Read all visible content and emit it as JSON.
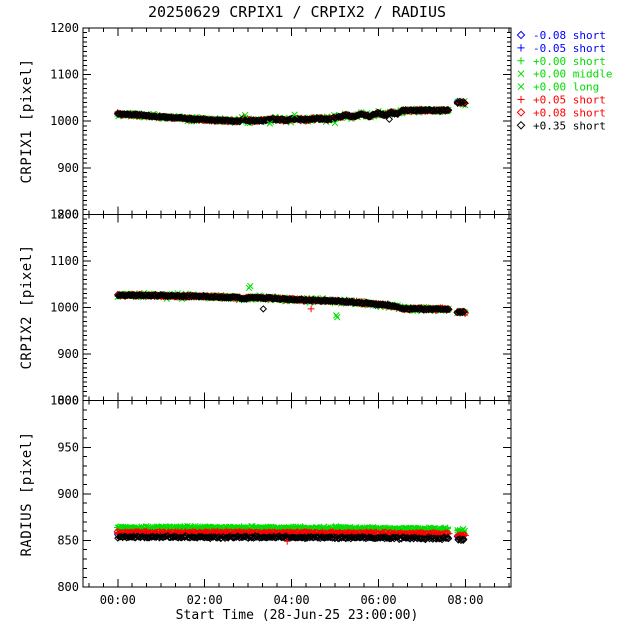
{
  "title": "20250629 CRPIX1 / CRPIX2 / RADIUS",
  "xaxis": {
    "label": "Start Time (28-Jun-25 23:00:00)",
    "tick_labels": [
      "00:00",
      "02:00",
      "04:00",
      "06:00",
      "08:00"
    ],
    "tick_hours": [
      1,
      3,
      5,
      7,
      9
    ],
    "range_hours": [
      0.2,
      10.05
    ],
    "minor_step_hours": 0.3333333
  },
  "colors": {
    "blue": "#0000ff",
    "green": "#00dd00",
    "red": "#ff0000",
    "black": "#000000",
    "background": "#ffffff"
  },
  "legend": {
    "entries": [
      {
        "symbol": "diamond",
        "color": "#0000ff",
        "label": "-0.08 short"
      },
      {
        "symbol": "plus",
        "color": "#0000ff",
        "label": "-0.05 short"
      },
      {
        "symbol": "plus",
        "color": "#00dd00",
        "label": "+0.00 short"
      },
      {
        "symbol": "x",
        "color": "#00dd00",
        "label": "+0.00 middle"
      },
      {
        "symbol": "x",
        "color": "#00dd00",
        "label": "+0.00 long"
      },
      {
        "symbol": "plus",
        "color": "#ff0000",
        "label": "+0.05 short"
      },
      {
        "symbol": "diamond",
        "color": "#ff0000",
        "label": "+0.08 short"
      },
      {
        "symbol": "diamond",
        "color": "#000000",
        "label": "+0.35 short"
      }
    ]
  },
  "chart_data": [
    {
      "type": "scatter",
      "name": "CRPIX1",
      "ylabel": "CRPIX1 [pixel]",
      "ylim": [
        800,
        1200
      ],
      "yticks": [
        800,
        900,
        1000,
        1100,
        1200
      ],
      "y_minor_step": 10,
      "x_hours_since": "28-Jun-25 23:00:00",
      "segments_hours": [
        [
          1.0,
          8.63
        ],
        [
          8.82,
          9.0
        ]
      ],
      "trend": [
        [
          1.0,
          1016
        ],
        [
          1.35,
          1014
        ],
        [
          1.7,
          1011.5
        ],
        [
          2.05,
          1009
        ],
        [
          2.4,
          1006.5
        ],
        [
          2.75,
          1004.5
        ],
        [
          3.1,
          1002.5
        ],
        [
          3.5,
          1001
        ],
        [
          3.8,
          1000
        ],
        [
          3.9,
          1006
        ],
        [
          4.0,
          1000.5
        ],
        [
          4.3,
          1002
        ],
        [
          4.6,
          1004
        ],
        [
          4.85,
          1001.5
        ],
        [
          5.1,
          1005
        ],
        [
          5.35,
          1002.5
        ],
        [
          5.6,
          1006
        ],
        [
          5.85,
          1004
        ],
        [
          6.1,
          1009
        ],
        [
          6.25,
          1013.5
        ],
        [
          6.4,
          1009
        ],
        [
          6.6,
          1015
        ],
        [
          6.8,
          1010.5
        ],
        [
          7.0,
          1018
        ],
        [
          7.15,
          1012.5
        ],
        [
          7.3,
          1019
        ],
        [
          7.45,
          1016
        ],
        [
          7.55,
          1023
        ],
        [
          8.63,
          1023.5
        ],
        [
          8.82,
          1040
        ],
        [
          9.0,
          1040
        ]
      ],
      "series": [
        {
          "key": "blue-plus",
          "color": "#0000ff",
          "symbol": "plus",
          "dy": 0,
          "jitter": 4,
          "step": 0.28
        },
        {
          "key": "blue-diamond",
          "color": "#0000ff",
          "symbol": "diamond",
          "dy": 0,
          "jitter": 4,
          "step": 0.33
        },
        {
          "key": "green-x",
          "color": "#00dd00",
          "symbol": "x",
          "dy": 0,
          "jitter": 7,
          "step": 0.022
        },
        {
          "key": "green-plus",
          "color": "#00dd00",
          "symbol": "plus",
          "dy": 0,
          "jitter": 4,
          "step": 0.05
        },
        {
          "key": "red-plus",
          "color": "#ff0000",
          "symbol": "plus",
          "dy": 0,
          "jitter": 3.5,
          "step": 0.03
        },
        {
          "key": "red-diamond",
          "color": "#ff0000",
          "symbol": "diamond",
          "dy": 0,
          "jitter": 3.5,
          "step": 0.055
        },
        {
          "key": "black-diamond",
          "color": "#000000",
          "symbol": "diamond",
          "dy": 0,
          "jitter": 2.8,
          "step": 0.026
        }
      ],
      "outliers": [
        {
          "color": "#00dd00",
          "symbol": "x",
          "points": [
            [
              3.93,
              1013
            ],
            [
              5.07,
              1014
            ],
            [
              6.0,
              996
            ],
            [
              4.5,
              995
            ]
          ]
        },
        {
          "color": "#000000",
          "symbol": "diamond",
          "points": [
            [
              7.25,
              1004
            ]
          ]
        }
      ]
    },
    {
      "type": "scatter",
      "name": "CRPIX2",
      "ylabel": "CRPIX2 [pixel]",
      "ylim": [
        800,
        1200
      ],
      "yticks": [
        800,
        900,
        1000,
        1100,
        1200
      ],
      "y_minor_step": 10,
      "x_hours_since": "28-Jun-25 23:00:00",
      "segments_hours": [
        [
          1.0,
          8.63
        ],
        [
          8.82,
          9.0
        ]
      ],
      "trend": [
        [
          1.0,
          1026.5
        ],
        [
          1.6,
          1026
        ],
        [
          2.2,
          1025
        ],
        [
          2.8,
          1024
        ],
        [
          3.4,
          1022.5
        ],
        [
          3.8,
          1021.5
        ],
        [
          3.9,
          1018
        ],
        [
          4.0,
          1021.5
        ],
        [
          4.5,
          1020
        ],
        [
          5.0,
          1017.5
        ],
        [
          5.5,
          1015.5
        ],
        [
          6.0,
          1013.5
        ],
        [
          6.4,
          1011.5
        ],
        [
          6.8,
          1008.5
        ],
        [
          7.1,
          1006
        ],
        [
          7.3,
          1003.5
        ],
        [
          7.45,
          1000.5
        ],
        [
          7.55,
          997.5
        ],
        [
          8.63,
          996.5
        ],
        [
          8.82,
          990
        ],
        [
          9.0,
          990
        ]
      ],
      "series": [
        {
          "key": "blue-plus",
          "color": "#0000ff",
          "symbol": "plus",
          "dy": 0,
          "jitter": 4,
          "step": 0.28
        },
        {
          "key": "blue-diamond",
          "color": "#0000ff",
          "symbol": "diamond",
          "dy": 0,
          "jitter": 4,
          "step": 0.33
        },
        {
          "key": "green-x",
          "color": "#00dd00",
          "symbol": "x",
          "dy": 0,
          "jitter": 7,
          "step": 0.022
        },
        {
          "key": "green-plus",
          "color": "#00dd00",
          "symbol": "plus",
          "dy": 0,
          "jitter": 4,
          "step": 0.05
        },
        {
          "key": "red-plus",
          "color": "#ff0000",
          "symbol": "plus",
          "dy": 0,
          "jitter": 3.5,
          "step": 0.03
        },
        {
          "key": "red-diamond",
          "color": "#ff0000",
          "symbol": "diamond",
          "dy": 0,
          "jitter": 3.5,
          "step": 0.055
        },
        {
          "key": "black-diamond",
          "color": "#000000",
          "symbol": "diamond",
          "dy": 0,
          "jitter": 2.8,
          "step": 0.026
        }
      ],
      "outliers": [
        {
          "color": "#00dd00",
          "symbol": "x",
          "points": [
            [
              4.05,
              1046
            ],
            [
              4.02,
              1042
            ],
            [
              6.05,
              979
            ],
            [
              6.03,
              983
            ]
          ]
        },
        {
          "color": "#000000",
          "symbol": "diamond",
          "points": [
            [
              4.35,
              997
            ]
          ]
        },
        {
          "color": "#ff0000",
          "symbol": "plus",
          "points": [
            [
              5.45,
              997
            ]
          ]
        }
      ]
    },
    {
      "type": "scatter",
      "name": "RADIUS",
      "ylabel": "RADIUS [pixel]",
      "ylim": [
        800,
        1000
      ],
      "yticks": [
        800,
        850,
        900,
        950,
        1000
      ],
      "y_minor_step": 10,
      "x_hours_since": "28-Jun-25 23:00:00",
      "segments_hours": [
        [
          1.0,
          8.63
        ],
        [
          8.82,
          9.0
        ]
      ],
      "trend": [
        [
          1.0,
          863.5
        ],
        [
          4.0,
          863.5
        ],
        [
          6.0,
          863
        ],
        [
          7.5,
          862.5
        ],
        [
          8.63,
          862
        ],
        [
          8.82,
          860.5
        ],
        [
          9.0,
          860.5
        ]
      ],
      "series": [
        {
          "key": "blue-plus",
          "color": "#0000ff",
          "symbol": "plus",
          "dy": -7,
          "jitter": 1.5,
          "step": 0.3
        },
        {
          "key": "blue-diamond",
          "color": "#0000ff",
          "symbol": "diamond",
          "dy": -7,
          "jitter": 1.5,
          "step": 0.34
        },
        {
          "key": "green-x",
          "color": "#00dd00",
          "symbol": "x",
          "dy": 0,
          "jitter": 2.4,
          "step": 0.022
        },
        {
          "key": "green-plus",
          "color": "#00dd00",
          "symbol": "plus",
          "dy": 0,
          "jitter": 1.6,
          "step": 0.05
        },
        {
          "key": "red-plus",
          "color": "#ff0000",
          "symbol": "plus",
          "dy": -5,
          "jitter": 1.6,
          "step": 0.03
        },
        {
          "key": "red-diamond",
          "color": "#ff0000",
          "symbol": "diamond",
          "dy": -5,
          "jitter": 1.6,
          "step": 0.055
        },
        {
          "key": "black-diamond",
          "color": "#000000",
          "symbol": "diamond",
          "dy": -10,
          "jitter": 1.8,
          "step": 0.026
        }
      ],
      "outliers": [
        {
          "color": "#ff0000",
          "symbol": "plus",
          "points": [
            [
              4.9,
              849
            ]
          ]
        }
      ]
    }
  ]
}
